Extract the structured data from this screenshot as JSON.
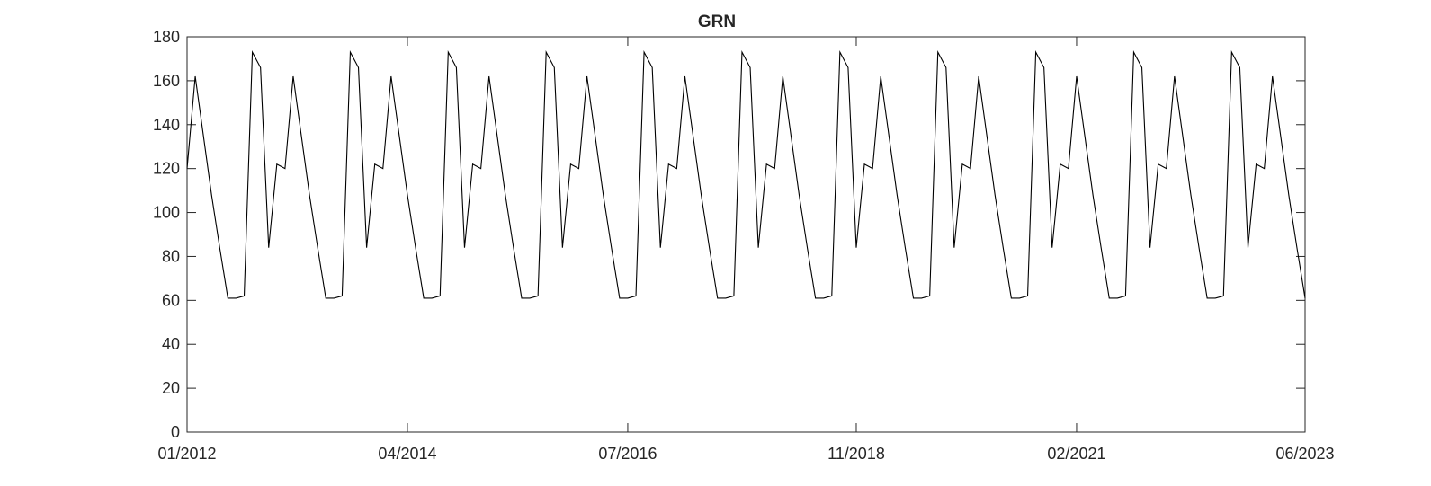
{
  "chart_data": {
    "type": "line",
    "title": "GRN",
    "xlabel": "",
    "ylabel": "",
    "ylim": [
      0,
      180
    ],
    "yticks": [
      0,
      20,
      40,
      60,
      80,
      100,
      120,
      140,
      160,
      180
    ],
    "xlim": [
      "2012-01",
      "2023-06"
    ],
    "xticks": [
      {
        "date": "2012-01",
        "label": "01/2012"
      },
      {
        "date": "2014-04",
        "label": "04/2014"
      },
      {
        "date": "2016-07",
        "label": "07/2016"
      },
      {
        "date": "2018-11",
        "label": "11/2018"
      },
      {
        "date": "2021-02",
        "label": "02/2021"
      },
      {
        "date": "2023-06",
        "label": "06/2023"
      }
    ],
    "grid": false,
    "series": [
      {
        "name": "GRN",
        "color": "#000000",
        "cycle_start": "2012-01",
        "months": 138,
        "annual_pattern": [
          120,
          162,
          135,
          108,
          84,
          61,
          61,
          62,
          173,
          166,
          84,
          122
        ]
      }
    ]
  }
}
